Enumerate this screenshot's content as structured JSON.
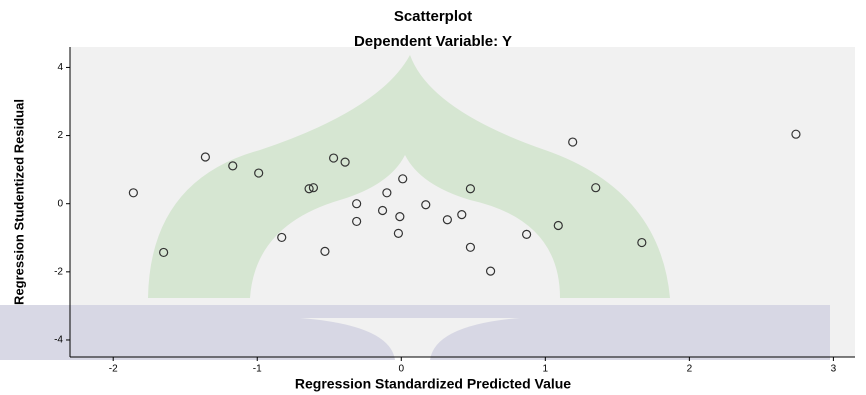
{
  "chart_data": {
    "type": "scatter",
    "title": "Scatterplot",
    "subtitle": "Dependent Variable: Y",
    "x_label": "Regression Standardized Predicted Value",
    "y_label": "Regression Studentized Residual",
    "xlim": [
      -2.3,
      3.15
    ],
    "ylim": [
      -4.5,
      4.6
    ],
    "xticks": [
      -2,
      -1,
      0,
      1,
      2,
      3
    ],
    "yticks": [
      -4,
      -2,
      0,
      2,
      4
    ],
    "series": [
      {
        "color": "#333333",
        "x": [
          -1.86,
          -1.65,
          -1.36,
          -1.17,
          -0.99,
          -0.83,
          -0.64,
          -0.61,
          -0.53,
          -0.47,
          -0.39,
          -0.31,
          -0.31,
          -0.13,
          -0.1,
          -0.02,
          -0.01,
          0.01,
          0.17,
          0.32,
          0.42,
          0.48,
          0.48,
          0.62,
          0.87,
          1.09,
          1.19,
          1.35,
          1.67,
          2.74
        ],
        "values": [
          0.32,
          -1.43,
          1.37,
          1.11,
          0.9,
          -0.99,
          0.44,
          0.47,
          -1.4,
          1.34,
          1.22,
          0.0,
          -0.52,
          -0.2,
          0.32,
          -0.87,
          -0.38,
          0.73,
          -0.03,
          -0.47,
          -0.32,
          0.44,
          -1.28,
          -1.98,
          -0.9,
          -0.64,
          1.81,
          0.47,
          -1.14,
          2.04
        ]
      }
    ]
  }
}
